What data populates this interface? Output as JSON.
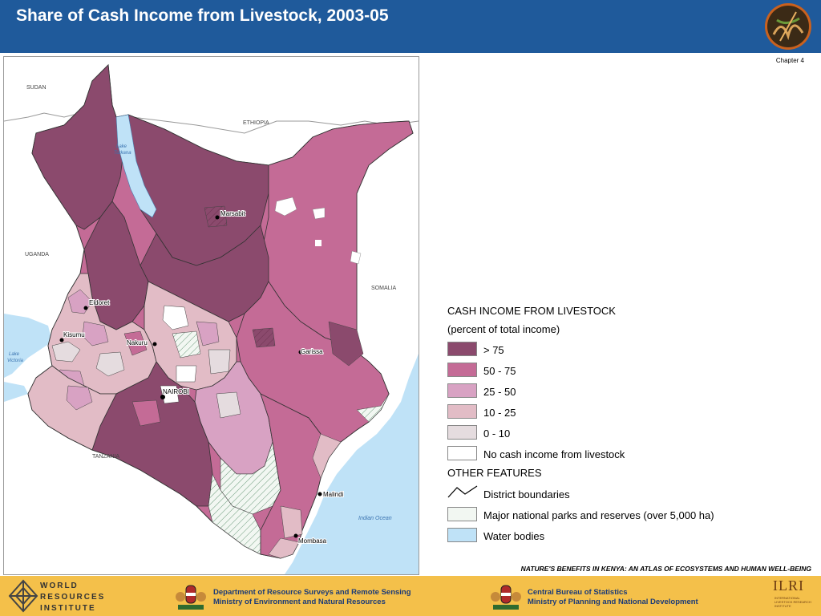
{
  "header": {
    "title": "Share of Cash Income from Livestock, 2003-05",
    "chapter": "Chapter 4"
  },
  "map": {
    "countries": [
      "SUDAN",
      "ETHIOPIA",
      "UGANDA",
      "SOMALIA",
      "TANZANIA"
    ],
    "water": [
      "Lake Turkana",
      "Lake Victoria",
      "Indian Ocean"
    ],
    "cities": [
      "Marsabit",
      "Eldoret",
      "Kisumu",
      "Nakuru",
      "Garissa",
      "NAIROBI",
      "Malindi",
      "Mombasa"
    ],
    "colors": {
      "gt75": "#8b4a6d",
      "c50_75": "#c46b96",
      "c25_50": "#d8a2c3",
      "c10_25": "#e2bcc6",
      "c0_10": "#e5dcdf",
      "none": "#ffffff",
      "water": "#bfe2f7",
      "park": "#f2f7f2"
    }
  },
  "legend": {
    "title": "CASH INCOME FROM LIVESTOCK",
    "subtitle": "(percent of total income)",
    "items": [
      {
        "label": "> 75",
        "color": "#8b4a6d"
      },
      {
        "label": "50 - 75",
        "color": "#c46b96"
      },
      {
        "label": "25 - 50",
        "color": "#d8a2c3"
      },
      {
        "label": "10 - 25",
        "color": "#e2bcc6"
      },
      {
        "label": "0 - 10",
        "color": "#e5dcdf"
      },
      {
        "label": "No cash income from livestock",
        "color": "#ffffff"
      }
    ],
    "other_title": "OTHER FEATURES",
    "other_items": [
      {
        "label": "District boundaries",
        "icon": "district-boundary-icon"
      },
      {
        "label": "Major national parks and reserves (over 5,000 ha)",
        "color": "#f2f7f2"
      },
      {
        "label": "Water bodies",
        "color": "#bfe2f7"
      }
    ]
  },
  "footer": {
    "atlas_note": "NATURE'S BENEFITS IN KENYA: AN ATLAS OF ECOSYSTEMS AND HUMAN WELL-BEING",
    "wri": [
      "WORLD",
      "RESOURCES",
      "INSTITUTE"
    ],
    "dept1": [
      "Department of Resource Surveys and Remote Sensing",
      "Ministry of Environment and Natural Resources"
    ],
    "dept2": [
      "Central Bureau of Statistics",
      "Ministry of Planning and National Development"
    ],
    "ilri": "ILRI",
    "ilri_sub": [
      "INTERNATIONAL",
      "LIVESTOCK RESEARCH",
      "INSTITUTE"
    ]
  }
}
